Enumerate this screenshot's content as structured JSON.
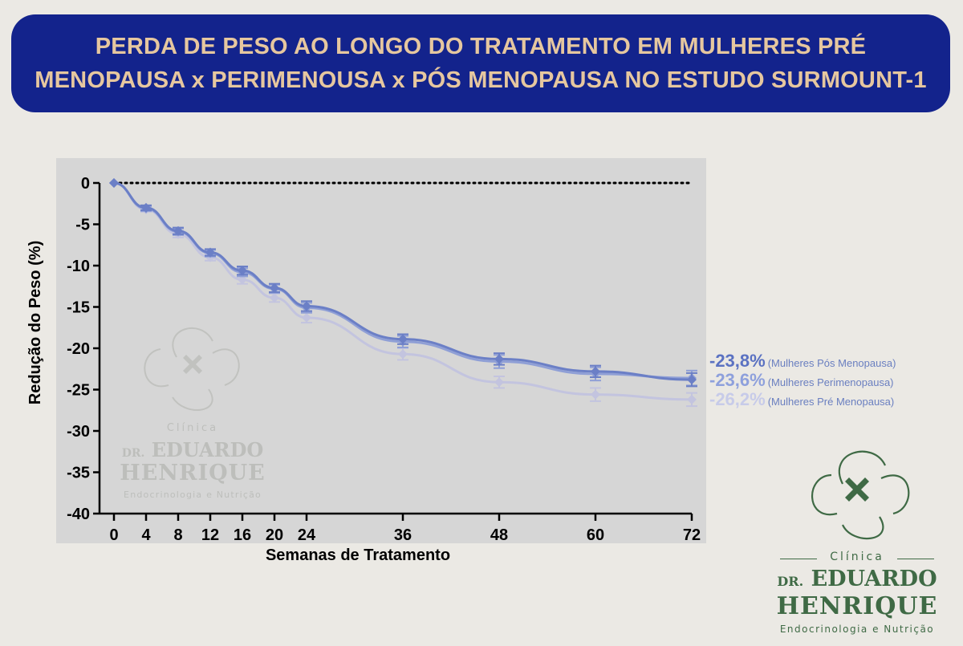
{
  "header": {
    "title_line1": "PERDA DE PESO AO LONGO DO TRATAMENTO EM MULHERES PRÉ",
    "title_line2": "MENOPAUSA x PERIMENOUSA x PÓS MENOPAUSA NO ESTUDO SURMOUNT-1"
  },
  "colors": {
    "banner": "#13238c",
    "banner_text": "#e6c79f",
    "series_pos": "#6b7fc6",
    "series_peri": "#8f9fd6",
    "series_pre": "#c3c4df",
    "plot_bg": "#d6d6d6",
    "logo": "#3f6a45"
  },
  "chart_data": {
    "type": "line",
    "xlabel": "Semanas de Tratamento",
    "ylabel": "Redução do Peso (%)",
    "x": [
      0,
      4,
      8,
      12,
      16,
      20,
      24,
      36,
      48,
      60,
      72
    ],
    "x_tick_labels": [
      "0",
      "4",
      "8",
      "12",
      "16",
      "20",
      "24",
      "36",
      "48",
      "60",
      "72"
    ],
    "xlim": [
      0,
      72
    ],
    "ylim": [
      -40,
      0
    ],
    "y_ticks": [
      0,
      -5,
      -10,
      -15,
      -20,
      -25,
      -30,
      -35,
      -40
    ],
    "y_tick_labels": [
      "0",
      "-5",
      "-10",
      "-15",
      "-20",
      "-25",
      "-30",
      "-35",
      "-40"
    ],
    "reference_line": 0,
    "series": [
      {
        "name": "Mulheres Pré Menopausa",
        "values": [
          0,
          -3.2,
          -6.2,
          -9.0,
          -11.7,
          -13.9,
          -16.3,
          -20.7,
          -24.1,
          -25.6,
          -26.2
        ],
        "error": [
          0,
          0.3,
          0.4,
          0.4,
          0.5,
          0.5,
          0.6,
          0.7,
          0.7,
          0.8,
          0.8
        ],
        "color": "#c3c4df"
      },
      {
        "name": "Mulheres Perimenopausa",
        "values": [
          0,
          -3.1,
          -5.9,
          -8.5,
          -10.8,
          -12.8,
          -15.1,
          -19.2,
          -21.6,
          -23.1,
          -23.6
        ],
        "error": [
          0,
          0.3,
          0.4,
          0.4,
          0.5,
          0.5,
          0.6,
          0.7,
          0.8,
          0.8,
          0.9
        ],
        "color": "#8f9fd6"
      },
      {
        "name": "Mulheres Pós Menopausa",
        "values": [
          0,
          -3.0,
          -5.8,
          -8.4,
          -10.6,
          -12.7,
          -14.9,
          -18.9,
          -21.3,
          -22.8,
          -23.8
        ],
        "error": [
          0,
          0.3,
          0.4,
          0.4,
          0.5,
          0.5,
          0.6,
          0.6,
          0.7,
          0.7,
          0.8
        ],
        "color": "#6b7fc6"
      }
    ],
    "end_labels": [
      {
        "value": "-23,8%",
        "label": "(Mulheres Pós Menopausa)",
        "color": "#5b72c2"
      },
      {
        "value": "-23,6%",
        "label": "(Mulheres Perimenopausa)",
        "color": "#8ea0dc"
      },
      {
        "value": "-26,2%",
        "label": "(Mulheres Pré Menopausa)",
        "color": "#c7cbe9"
      }
    ]
  },
  "logo": {
    "clinica": "Clínica",
    "dr": "DR.",
    "name1": "EDUARDO",
    "name2": "HENRIQUE",
    "subtitle": "Endocrinologia e Nutrição"
  }
}
